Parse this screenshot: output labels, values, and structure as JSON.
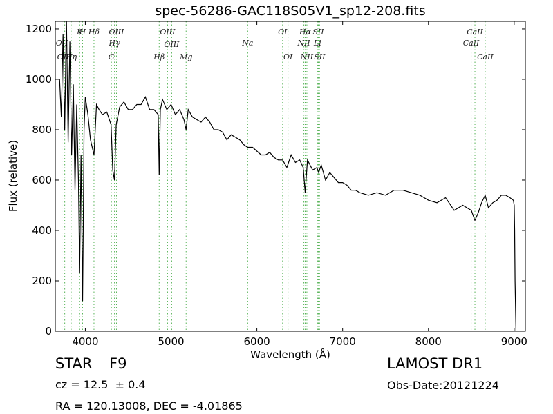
{
  "title": "spec-56286-GAC118S05V1_sp12-208.fits",
  "info": {
    "object_class": "STAR",
    "subclass": "F9",
    "redshift": "cz = 12.5  ± 0.4",
    "coords": "RA = 120.13008, DEC = -4.01865",
    "survey": "LAMOST DR1",
    "obs_date": "Obs-Date:20121224"
  },
  "chart_data": {
    "type": "line",
    "title": "spec-56286-GAC118S05V1_sp12-208.fits",
    "xlabel": "Wavelength (Å)",
    "ylabel": "Flux (relative)",
    "xlim": [
      3650,
      9130
    ],
    "ylim": [
      0,
      1230
    ],
    "xticks": [
      4000,
      5000,
      6000,
      7000,
      8000,
      9000
    ],
    "yticks": [
      0,
      200,
      400,
      600,
      800,
      1000,
      1200
    ],
    "grid": false,
    "line_color": "#000000",
    "marker_color": "#2ca02c",
    "series": [
      {
        "x": [
          3700,
          3720,
          3740,
          3760,
          3780,
          3800,
          3820,
          3840,
          3860,
          3880,
          3900,
          3920,
          3934,
          3950,
          3968,
          3985,
          4000,
          4030,
          4060,
          4101,
          4130,
          4160,
          4200,
          4250,
          4300,
          4320,
          4340,
          4360,
          4400,
          4450,
          4500,
          4550,
          4600,
          4650,
          4700,
          4750,
          4800,
          4850,
          4861,
          4875,
          4900,
          4950,
          5000,
          5050,
          5100,
          5150,
          5175,
          5200,
          5250,
          5300,
          5350,
          5400,
          5450,
          5500,
          5550,
          5600,
          5650,
          5700,
          5750,
          5800,
          5850,
          5893,
          5950,
          6000,
          6050,
          6100,
          6150,
          6200,
          6250,
          6300,
          6350,
          6400,
          6450,
          6500,
          6540,
          6563,
          6590,
          6620,
          6650,
          6700,
          6720,
          6750,
          6800,
          6850,
          6900,
          6950,
          7000,
          7050,
          7100,
          7150,
          7200,
          7300,
          7400,
          7500,
          7600,
          7700,
          7800,
          7900,
          8000,
          8100,
          8200,
          8300,
          8400,
          8450,
          8500,
          8542,
          8580,
          8620,
          8662,
          8700,
          8750,
          8800,
          8850,
          8900,
          8950,
          8990,
          9000,
          9005,
          9010,
          9020
        ],
        "y": [
          1000,
          850,
          1180,
          800,
          1250,
          750,
          1150,
          700,
          980,
          560,
          900,
          600,
          230,
          700,
          120,
          800,
          930,
          860,
          760,
          700,
          900,
          880,
          860,
          870,
          820,
          640,
          600,
          820,
          890,
          910,
          880,
          880,
          900,
          900,
          930,
          880,
          880,
          860,
          620,
          880,
          920,
          880,
          900,
          860,
          880,
          840,
          800,
          880,
          850,
          840,
          830,
          850,
          830,
          800,
          800,
          790,
          760,
          780,
          770,
          760,
          740,
          730,
          730,
          715,
          700,
          700,
          710,
          690,
          680,
          680,
          650,
          700,
          670,
          680,
          650,
          550,
          680,
          660,
          640,
          650,
          630,
          660,
          600,
          630,
          610,
          590,
          590,
          580,
          560,
          560,
          550,
          540,
          550,
          540,
          560,
          560,
          550,
          540,
          520,
          510,
          530,
          480,
          500,
          490,
          480,
          440,
          470,
          510,
          540,
          490,
          510,
          520,
          540,
          540,
          530,
          520,
          500,
          400,
          200,
          0
        ]
      }
    ],
    "lines": [
      {
        "name": "OII",
        "wavelength": 3727,
        "row": "upper",
        "level": 2
      },
      {
        "name": "OIII",
        "wavelength": 3760,
        "row": "lower",
        "level": 1
      },
      {
        "name": "Hη",
        "wavelength": 3835,
        "row": "lower",
        "level": 1
      },
      {
        "name": "K",
        "wavelength": 3934,
        "row": "upper",
        "level": 1
      },
      {
        "name": "H",
        "wavelength": 3968,
        "row": "upper",
        "level": 1
      },
      {
        "name": "Hδ",
        "wavelength": 4101,
        "row": "upper",
        "level": 1
      },
      {
        "name": "G",
        "wavelength": 4304,
        "row": "lower",
        "level": 1
      },
      {
        "name": "Hγ",
        "wavelength": 4340,
        "row": "upper",
        "level": 2
      },
      {
        "name": "OIII",
        "wavelength": 4363,
        "row": "upper",
        "level": 1
      },
      {
        "name": "Hβ",
        "wavelength": 4861,
        "row": "lower",
        "level": 1
      },
      {
        "name": "OIII",
        "wavelength": 4959,
        "row": "upper",
        "level": 1
      },
      {
        "name": "OIII",
        "wavelength": 5007,
        "row": "lower",
        "level": 2
      },
      {
        "name": "Mg",
        "wavelength": 5175,
        "row": "lower",
        "level": 1
      },
      {
        "name": "Na",
        "wavelength": 5893,
        "row": "upper",
        "level": 2
      },
      {
        "name": "OI",
        "wavelength": 6300,
        "row": "upper",
        "level": 1
      },
      {
        "name": "OI",
        "wavelength": 6363,
        "row": "lower",
        "level": 1
      },
      {
        "name": "NII",
        "wavelength": 6548,
        "row": "upper",
        "level": 2
      },
      {
        "name": "Hα",
        "wavelength": 6563,
        "row": "upper",
        "level": 1
      },
      {
        "name": "NII",
        "wavelength": 6583,
        "row": "lower",
        "level": 1
      },
      {
        "name": "Li",
        "wavelength": 6707,
        "row": "upper",
        "level": 2
      },
      {
        "name": "SII",
        "wavelength": 6716,
        "row": "upper",
        "level": 1
      },
      {
        "name": "SII",
        "wavelength": 6731,
        "row": "lower",
        "level": 1
      },
      {
        "name": "CaII",
        "wavelength": 8498,
        "row": "upper",
        "level": 2
      },
      {
        "name": "CaII",
        "wavelength": 8542,
        "row": "upper",
        "level": 1
      },
      {
        "name": "CaII",
        "wavelength": 8662,
        "row": "lower",
        "level": 1
      }
    ]
  }
}
